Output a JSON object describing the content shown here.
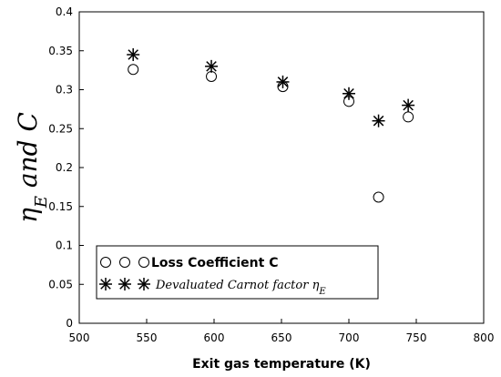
{
  "chart_data": {
    "type": "scatter",
    "xlabel": "Exit gas temperature (K)",
    "ylabel": "ηE and C",
    "ylabel_main": "η",
    "ylabel_sub": "E",
    "ylabel_rest": " and C",
    "xlim": [
      500,
      800
    ],
    "ylim": [
      0,
      0.4
    ],
    "xticks": [
      "500",
      "550",
      "600",
      "650",
      "700",
      "750",
      "800"
    ],
    "yticks": [
      "0",
      "0.05",
      "0.1",
      "0.15",
      "0.2",
      "0.25",
      "0.3",
      "0.35",
      "0.4"
    ],
    "grid": false,
    "legend_position": "bottom-left",
    "series": [
      {
        "name": "Loss Coefficient C",
        "marker": "circle",
        "x": [
          540,
          598,
          651,
          700,
          722,
          744
        ],
        "y": [
          0.326,
          0.317,
          0.304,
          0.285,
          0.162,
          0.265
        ]
      },
      {
        "name": "Devaluated Carnot factor ηE",
        "name_main": "Devaluated Carnot factor η",
        "name_sub": "E",
        "marker": "asterisk",
        "x": [
          540,
          598,
          651,
          700,
          722,
          744
        ],
        "y": [
          0.345,
          0.33,
          0.31,
          0.295,
          0.26,
          0.28
        ]
      }
    ]
  },
  "colors": {
    "marker": "#000000",
    "axis": "#000000",
    "background": "#ffffff"
  }
}
